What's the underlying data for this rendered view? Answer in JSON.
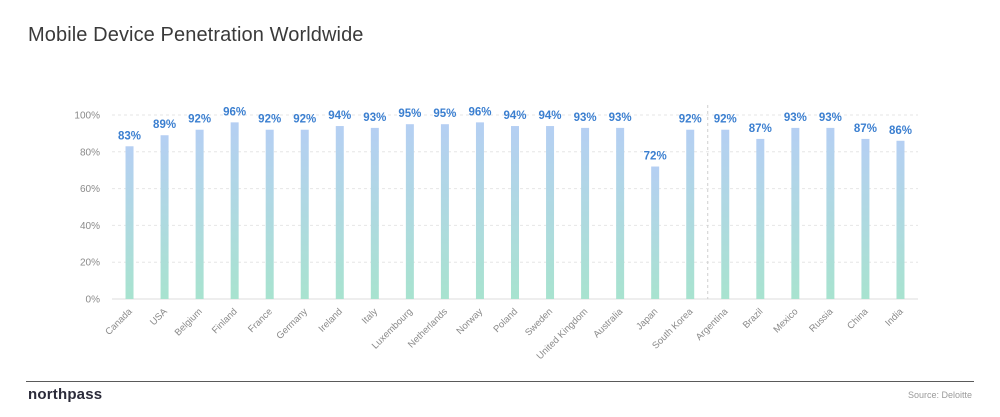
{
  "title": "Mobile Device Penetration Worldwide",
  "brand": "northpass",
  "source": "Source: Deloitte",
  "colors": {
    "bar_top": "#b5cff3",
    "bar_bottom": "#a8e3cf",
    "value_label": "#3b7fd0",
    "grid": "#e6e6e6",
    "axis_text": "#8a8a8a"
  },
  "chart_data": {
    "type": "bar",
    "title": "Mobile Device Penetration Worldwide",
    "categories": [
      "Canada",
      "USA",
      "Belgium",
      "Finland",
      "France",
      "Germany",
      "Ireland",
      "Italy",
      "Luxembourg",
      "Netherlands",
      "Norway",
      "Poland",
      "Sweden",
      "United Kingdom",
      "Australia",
      "Japan",
      "South Korea",
      "Argentina",
      "Brazil",
      "Mexico",
      "Russia",
      "China",
      "India"
    ],
    "values": [
      83,
      89,
      92,
      96,
      92,
      92,
      94,
      93,
      95,
      95,
      96,
      94,
      94,
      93,
      93,
      72,
      92,
      92,
      87,
      93,
      93,
      87,
      86
    ],
    "value_labels": [
      "83%",
      "89%",
      "92%",
      "96%",
      "92%",
      "92%",
      "94%",
      "93%",
      "95%",
      "95%",
      "96%",
      "94%",
      "94%",
      "93%",
      "93%",
      "72%",
      "92%",
      "92%",
      "87%",
      "93%",
      "93%",
      "87%",
      "86%"
    ],
    "yticks": [
      0,
      20,
      40,
      60,
      80,
      100
    ],
    "ytick_labels": [
      "0%",
      "20%",
      "40%",
      "60%",
      "80%",
      "100%"
    ],
    "ylim": [
      0,
      100
    ],
    "grid": true,
    "divider_after_category": "South Korea"
  }
}
